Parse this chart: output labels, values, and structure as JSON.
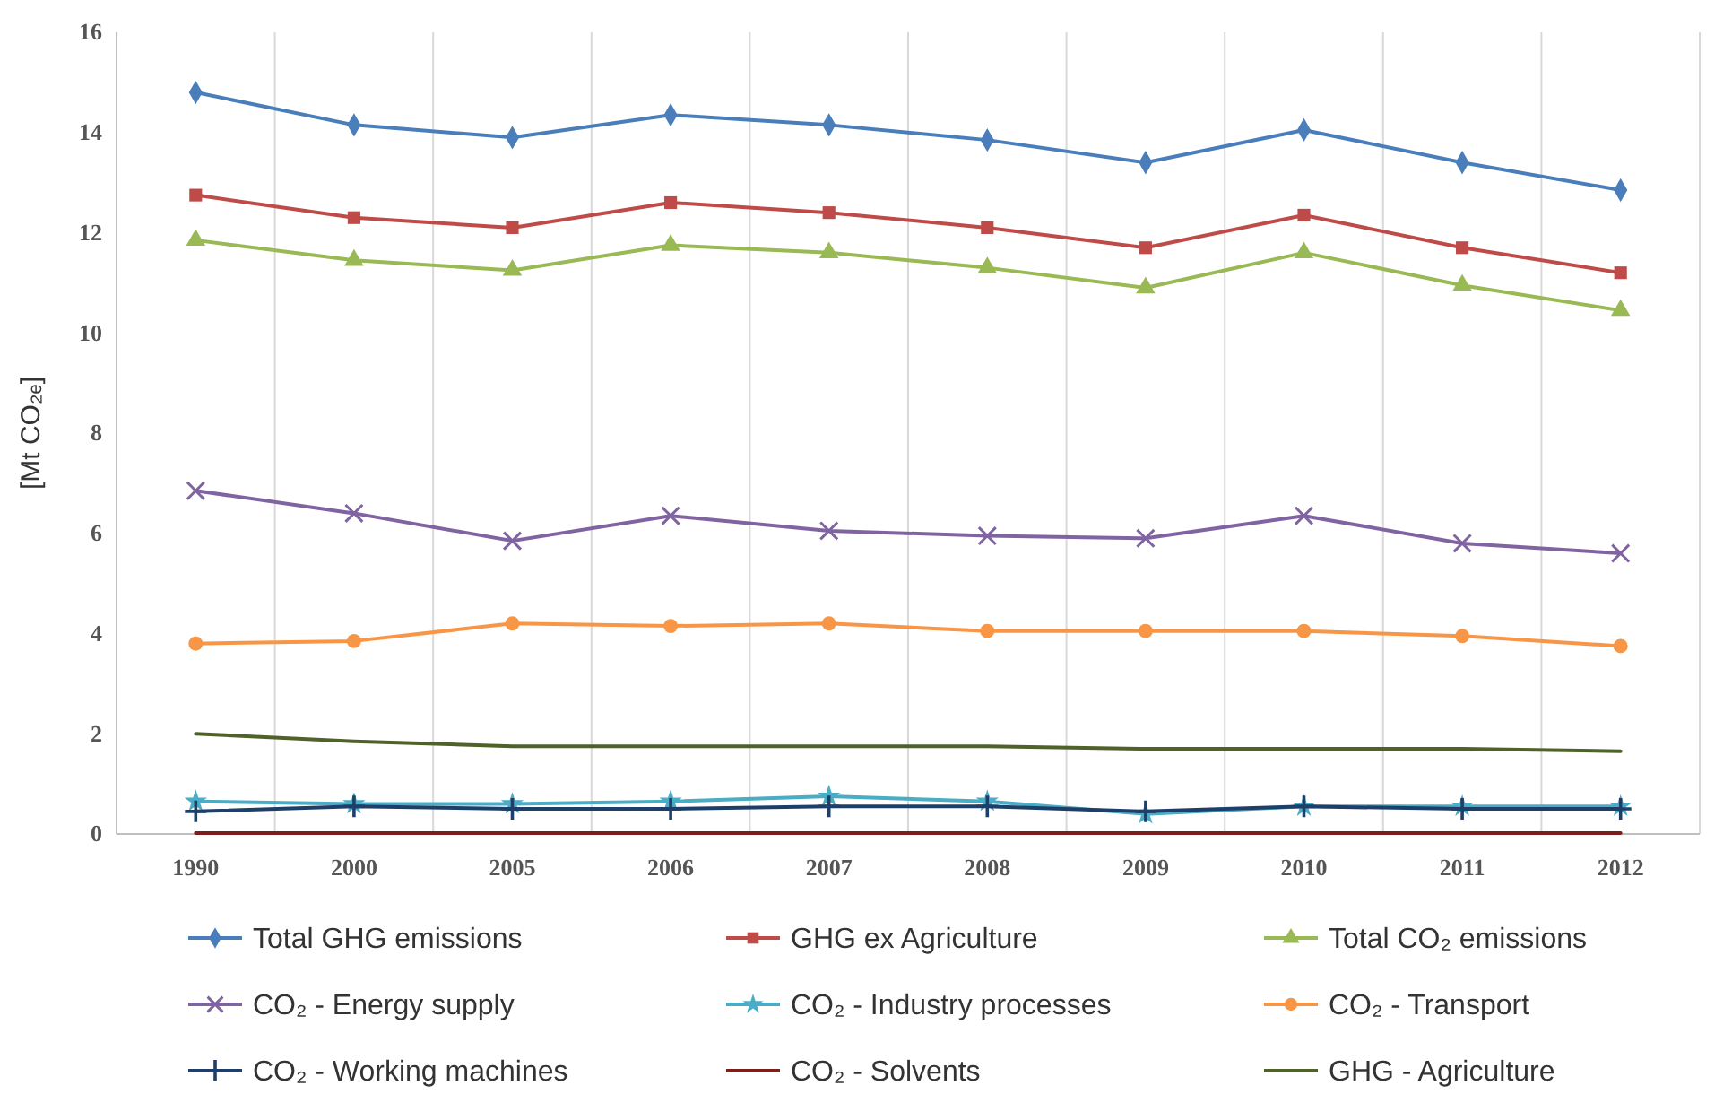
{
  "chart_data": {
    "type": "line",
    "ylabel": "[Mt CO₂ₑ]",
    "categories": [
      "1990",
      "2000",
      "2005",
      "2006",
      "2007",
      "2008",
      "2009",
      "2010",
      "2011",
      "2012"
    ],
    "ylim": [
      0,
      16
    ],
    "yticks": [
      0,
      2,
      4,
      6,
      8,
      10,
      12,
      14,
      16
    ],
    "grid": "x",
    "legend": "bottom",
    "line_style": "solid",
    "series": [
      {
        "name": "Total GHG emissions",
        "color": "#4a7ebb",
        "marker": "diamond",
        "values": [
          14.8,
          14.15,
          13.9,
          14.35,
          14.15,
          13.85,
          13.4,
          14.05,
          13.4,
          12.85
        ]
      },
      {
        "name": "GHG ex Agriculture",
        "color": "#be4b48",
        "marker": "square",
        "values": [
          12.75,
          12.3,
          12.1,
          12.6,
          12.4,
          12.1,
          11.7,
          12.35,
          11.7,
          11.2
        ]
      },
      {
        "name": "Total CO₂ emissions",
        "color": "#98b954",
        "marker": "triangle",
        "values": [
          11.85,
          11.45,
          11.25,
          11.75,
          11.6,
          11.3,
          10.9,
          11.6,
          10.95,
          10.45
        ]
      },
      {
        "name": "CO₂ - Energy supply",
        "color": "#8064a2",
        "marker": "cross",
        "values": [
          6.85,
          6.4,
          5.85,
          6.35,
          6.05,
          5.95,
          5.9,
          6.35,
          5.8,
          5.6
        ]
      },
      {
        "name": "CO₂ - Industry processes",
        "color": "#4bacc6",
        "marker": "star",
        "values": [
          0.65,
          0.6,
          0.6,
          0.65,
          0.75,
          0.65,
          0.4,
          0.55,
          0.55,
          0.55
        ]
      },
      {
        "name": "CO₂ - Transport",
        "color": "#f79646",
        "marker": "circle",
        "values": [
          3.8,
          3.85,
          4.2,
          4.15,
          4.2,
          4.05,
          4.05,
          4.05,
          3.95,
          3.75
        ]
      },
      {
        "name": "CO₂ - Working machines",
        "color": "#1f3f6b",
        "marker": "plus",
        "values": [
          0.45,
          0.55,
          0.5,
          0.5,
          0.55,
          0.55,
          0.45,
          0.55,
          0.5,
          0.5
        ]
      },
      {
        "name": "CO₂ - Solvents",
        "color": "#7b1f1d",
        "marker": "none",
        "values": [
          0.02,
          0.02,
          0.02,
          0.02,
          0.02,
          0.02,
          0.02,
          0.02,
          0.02,
          0.02
        ]
      },
      {
        "name": "GHG - Agriculture",
        "color": "#4f6228",
        "marker": "none",
        "values": [
          2.0,
          1.85,
          1.75,
          1.75,
          1.75,
          1.75,
          1.7,
          1.7,
          1.7,
          1.65
        ]
      }
    ]
  }
}
